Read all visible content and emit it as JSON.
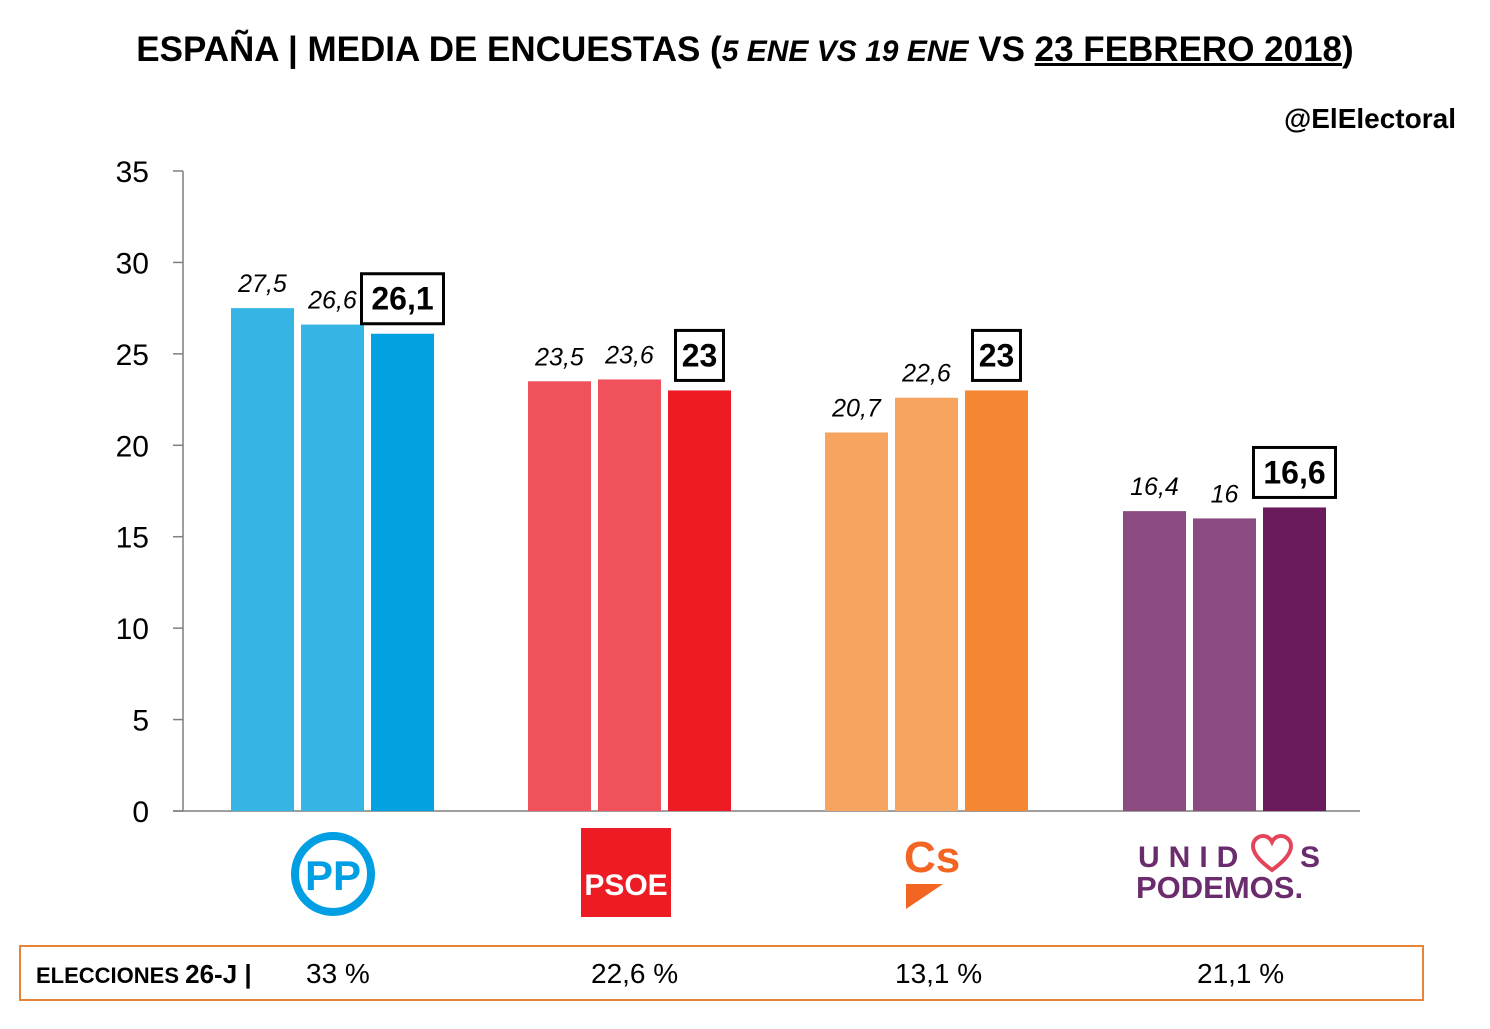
{
  "header": {
    "title_part1": "ESPAÑA | MEDIA DE ENCUESTAS (",
    "title_date1": "5 ENE",
    "title_vs1": " VS ",
    "title_date2": "19 ENE",
    "title_vs2": " VS ",
    "title_date3": "23 FEBRERO 2018",
    "title_close": ")",
    "handle": "@ElElectoral"
  },
  "chart_data": {
    "type": "bar",
    "categories": [
      "PP",
      "PSOE",
      "Cs",
      "UNIDOS PODEMOS"
    ],
    "series": [
      {
        "values": [
          27.5,
          23.5,
          20.7,
          16.4
        ],
        "labels": [
          "27,5",
          "23,5",
          "20,7",
          "16,4"
        ]
      },
      {
        "values": [
          26.6,
          23.6,
          22.6,
          16.0
        ],
        "labels": [
          "26,6",
          "23,6",
          "22,6",
          "16"
        ]
      },
      {
        "values": [
          26.1,
          23.0,
          23.0,
          16.6
        ],
        "labels": [
          "26,1",
          "23",
          "23",
          "16,6"
        ]
      }
    ],
    "colors": [
      [
        "#36b5e5",
        "#36b5e5",
        "#03a1df"
      ],
      [
        "#f0515a",
        "#f0515a",
        "#ed1c24"
      ],
      [
        "#f7a461",
        "#f7a461",
        "#f58632"
      ],
      [
        "#8a4b80",
        "#8a4b80",
        "#6b1a5b"
      ]
    ],
    "ylim": [
      0,
      35
    ],
    "yticks": [
      "0",
      "5",
      "10",
      "15",
      "20",
      "25",
      "30",
      "35"
    ],
    "grid": false,
    "legend": "none"
  },
  "logos": {
    "pp": {
      "text": "PP",
      "color": "#009fe3"
    },
    "psoe": {
      "text": "PSOE",
      "color": "#ed1c24"
    },
    "cs": {
      "text": "Cs",
      "color": "#f26522"
    },
    "podemos": {
      "line1_a": "UNID",
      "line1_b": "S",
      "line2": "PODEMOS.",
      "color": "#6b2c6e"
    }
  },
  "results": {
    "label_a": "ELECCIONES ",
    "label_b": "26-J",
    "label_sep": " |",
    "values": [
      "33 %",
      "22,6 %",
      "13,1 %",
      "21,1 %"
    ]
  }
}
